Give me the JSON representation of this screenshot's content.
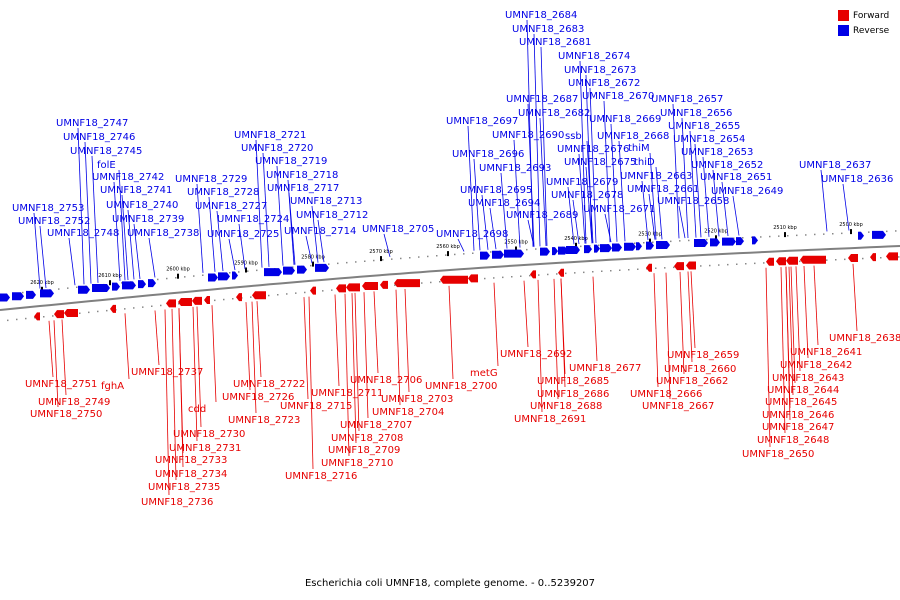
{
  "caption": "Escherichia coli UMNF18, complete genome. - 0..5239207",
  "legend": [
    {
      "label": "Forward",
      "color": "#e60000"
    },
    {
      "label": "Reverse",
      "color": "#0000e6"
    }
  ],
  "colors": {
    "forward": "#e60000",
    "reverse": "#0000e6",
    "axis": "#808080"
  },
  "scale_labels": [
    "2620 kbp",
    "2610 kbp",
    "2600 kbp",
    "2590 kbp",
    "2580 kbp",
    "2570 kbp",
    "2560 kbp",
    "2550 kbp",
    "2540 kbp",
    "2530 kbp",
    "2520 kbp",
    "2510 kbp",
    "2500 kbp"
  ],
  "reverse_genes": [
    "UMNF18_2753",
    "UMNF18_2752",
    "UMNF18_2748",
    "UMNF18_2747",
    "UMNF18_2746",
    "UMNF18_2745",
    "folE",
    "UMNF18_2742",
    "UMNF18_2741",
    "UMNF18_2740",
    "UMNF18_2739",
    "UMNF18_2738",
    "UMNF18_2729",
    "UMNF18_2728",
    "UMNF18_2727",
    "UMNF18_2725",
    "UMNF18_2724",
    "UMNF18_2721",
    "UMNF18_2720",
    "UMNF18_2719",
    "UMNF18_2718",
    "UMNF18_2717",
    "UMNF18_2714",
    "UMNF18_2713",
    "UMNF18_2712",
    "UMNF18_2705",
    "UMNF18_2698",
    "UMNF18_2697",
    "UMNF18_2696",
    "UMNF18_2695",
    "UMNF18_2694",
    "UMNF18_2693",
    "UMNF18_2690",
    "UMNF18_2689",
    "UMNF18_2687",
    "UMNF18_2684",
    "UMNF18_2683",
    "UMNF18_2682",
    "UMNF18_2681",
    "ssb",
    "UMNF18_2679",
    "UMNF18_2678",
    "UMNF18_2676",
    "UMNF18_2675",
    "UMNF18_2674",
    "UMNF18_2673",
    "UMNF18_2672",
    "UMNF18_2671",
    "UMNF18_2670",
    "UMNF18_2669",
    "UMNF18_2668",
    "thiM",
    "thiD",
    "UMNF18_2663",
    "UMNF18_2661",
    "UMNF18_2658",
    "UMNF18_2657",
    "UMNF18_2656",
    "UMNF18_2655",
    "UMNF18_2654",
    "UMNF18_2653",
    "UMNF18_2652",
    "UMNF18_2651",
    "UMNF18_2649",
    "UMNF18_2637",
    "UMNF18_2636"
  ],
  "forward_genes": [
    "UMNF18_2751",
    "UMNF18_2749",
    "UMNF18_2750",
    "fghA",
    "UMNF18_2737",
    "cdd",
    "UMNF18_2730",
    "UMNF18_2731",
    "UMNF18_2733",
    "UMNF18_2734",
    "UMNF18_2735",
    "UMNF18_2736",
    "UMNF18_2726",
    "UMNF18_2722",
    "UMNF18_2723",
    "UMNF18_2716",
    "UMNF18_2715",
    "UMNF18_2711",
    "UMNF18_2710",
    "UMNF18_2709",
    "UMNF18_2708",
    "UMNF18_2707",
    "UMNF18_2706",
    "UMNF18_2704",
    "UMNF18_2703",
    "UMNF18_2700",
    "metG",
    "UMNF18_2692",
    "UMNF18_2691",
    "UMNF18_2685",
    "UMNF18_2686",
    "UMNF18_2688",
    "UMNF18_2677",
    "UMNF18_2667",
    "UMNF18_2666",
    "UMNF18_2662",
    "UMNF18_2660",
    "UMNF18_2659",
    "UMNF18_2650",
    "UMNF18_2648",
    "UMNF18_2647",
    "UMNF18_2646",
    "UMNF18_2645",
    "UMNF18_2644",
    "UMNF18_2643",
    "UMNF18_2642",
    "UMNF18_2641",
    "UMNF18_2638"
  ]
}
